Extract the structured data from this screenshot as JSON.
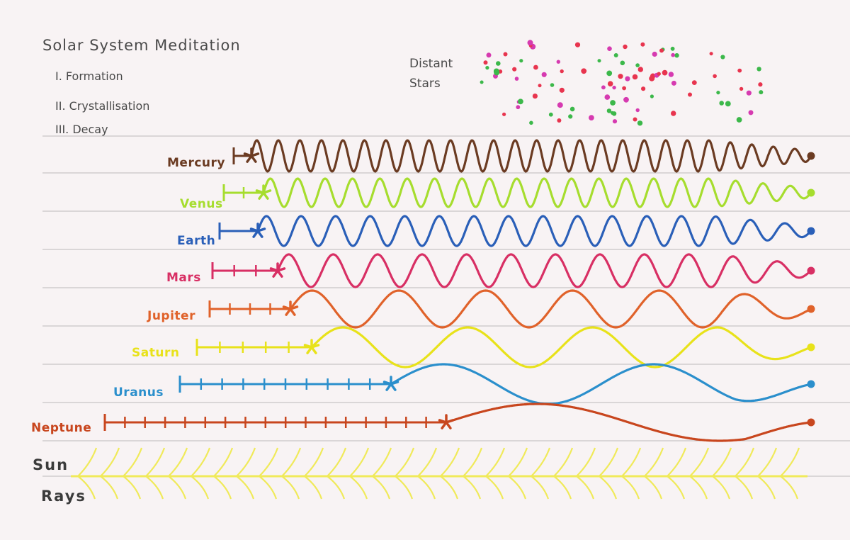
{
  "title": "Solar System Meditation",
  "sections": [
    "I. Formation",
    "II. Crystallisation",
    "III. Decay"
  ],
  "distant_stars": {
    "line1": "Distant",
    "line2": "Stars"
  },
  "sun": {
    "line1": "Sun",
    "line2": "Rays",
    "color": "#f0ea5a"
  },
  "star_colors": [
    "#e8344e",
    "#3cb84a",
    "#d63ab0"
  ],
  "planets": [
    {
      "name": "Mercury",
      "color": "#6b3b22",
      "cycles": 26
    },
    {
      "name": "Venus",
      "color": "#a6dd2e",
      "cycles": 20
    },
    {
      "name": "Earth",
      "color": "#2a5fb8",
      "cycles": 16
    },
    {
      "name": "Mars",
      "color": "#d82f64",
      "cycles": 12
    },
    {
      "name": "Jupiter",
      "color": "#e0622a",
      "cycles": 6
    },
    {
      "name": "Saturn",
      "color": "#e8e21a",
      "cycles": 4
    },
    {
      "name": "Uranus",
      "color": "#2b8fcc",
      "cycles": 2
    },
    {
      "name": "Neptune",
      "color": "#c8461e",
      "cycles": 1
    }
  ]
}
